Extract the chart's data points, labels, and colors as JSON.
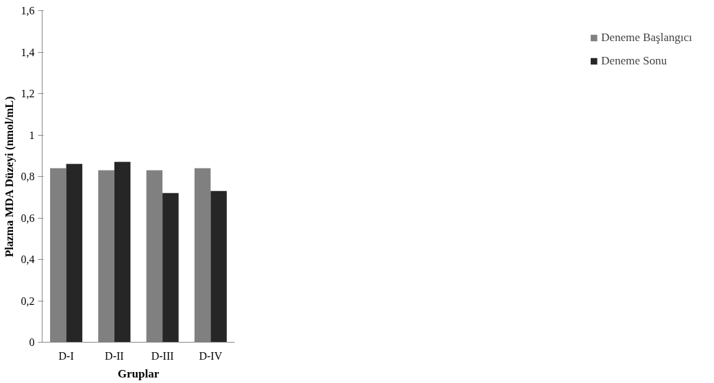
{
  "chart_data": {
    "type": "bar",
    "xlabel": "Gruplar",
    "ylabel": "Plazma MDA Düzeyi (nmol/mL)",
    "categories": [
      "D-I",
      "D-II",
      "D-III",
      "D-IV"
    ],
    "series": [
      {
        "name": "Deneme Başlangıcı",
        "color": "#808080",
        "values": [
          0.84,
          0.83,
          0.83,
          0.84
        ]
      },
      {
        "name": "Deneme Sonu",
        "color": "#262626",
        "values": [
          0.86,
          0.87,
          0.72,
          0.73
        ]
      }
    ],
    "ylim": [
      0,
      1.6
    ],
    "yticks": [
      0,
      {
        "value": 0.2,
        "label": "0,2"
      },
      {
        "value": 0.4,
        "label": "0,4"
      },
      {
        "value": 0.6,
        "label": "0,6"
      },
      {
        "value": 0.8,
        "label": "0,8"
      },
      1,
      {
        "value": 1.2,
        "label": "1,2"
      },
      {
        "value": 1.4,
        "label": "1,4"
      },
      {
        "value": 1.6,
        "label": "1,6"
      }
    ],
    "grid": false,
    "legend": "right"
  }
}
